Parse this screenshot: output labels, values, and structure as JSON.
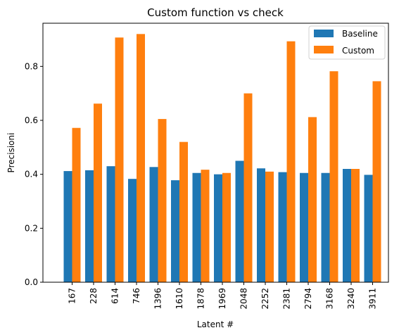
{
  "chart_data": {
    "type": "bar",
    "title": "Custom function vs check",
    "xlabel": "Latent #",
    "ylabel": "Precisioni",
    "categories": [
      "167",
      "228",
      "614",
      "746",
      "1396",
      "1610",
      "1878",
      "1969",
      "2048",
      "2252",
      "2381",
      "2794",
      "3168",
      "3240",
      "3911"
    ],
    "series": [
      {
        "name": "Baseline",
        "color": "#1f77b4",
        "values": [
          0.412,
          0.415,
          0.43,
          0.383,
          0.427,
          0.378,
          0.405,
          0.4,
          0.45,
          0.422,
          0.408,
          0.405,
          0.405,
          0.42,
          0.398
        ]
      },
      {
        "name": "Custom",
        "color": "#ff7f0e",
        "values": [
          0.572,
          0.662,
          0.907,
          0.92,
          0.605,
          0.52,
          0.417,
          0.405,
          0.7,
          0.41,
          0.893,
          0.612,
          0.782,
          0.42,
          0.745
        ]
      }
    ],
    "ylim": [
      0,
      0.96
    ],
    "yticks": [
      0.0,
      0.2,
      0.4,
      0.6,
      0.8
    ],
    "ytick_labels": [
      "0.0",
      "0.2",
      "0.4",
      "0.6",
      "0.8"
    ],
    "grid": false,
    "legend_position": "top-right"
  }
}
